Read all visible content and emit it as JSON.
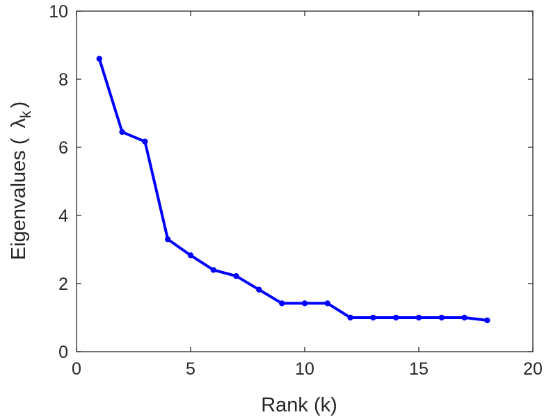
{
  "chart_data": {
    "type": "line",
    "title": "",
    "xlabel": "Rank (k)",
    "ylabel": {
      "prefix": "Eigenvalues (",
      "symbol": "λ",
      "subscript": "k",
      "suffix": ")"
    },
    "xlim": [
      0,
      20
    ],
    "ylim": [
      0,
      10
    ],
    "xticks": [
      0,
      5,
      10,
      15,
      20
    ],
    "yticks": [
      0,
      2,
      4,
      6,
      8,
      10
    ],
    "grid": false,
    "legend": "none",
    "series": [
      {
        "color": "#0000ff",
        "marker": "dot",
        "x": [
          1,
          2,
          3,
          4,
          5,
          6,
          7,
          8,
          9,
          10,
          11,
          12,
          13,
          14,
          15,
          16,
          17,
          18
        ],
        "y": [
          8.6,
          6.45,
          6.17,
          3.3,
          2.83,
          2.4,
          2.22,
          1.82,
          1.42,
          1.42,
          1.42,
          1.0,
          1.0,
          1.0,
          1.0,
          1.0,
          1.0,
          0.92
        ]
      }
    ]
  }
}
